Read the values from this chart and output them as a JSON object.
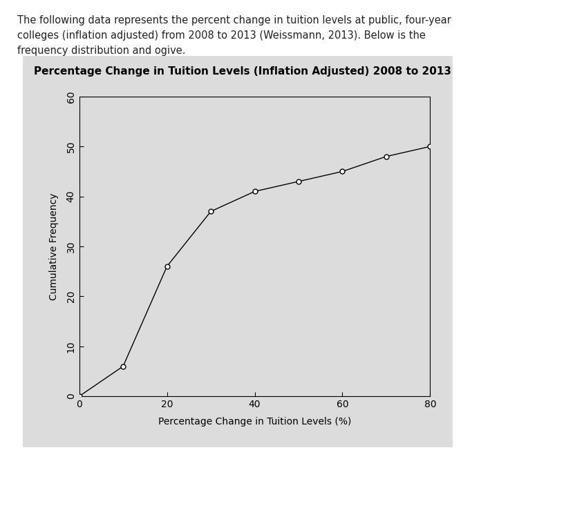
{
  "x_values": [
    0,
    10,
    20,
    30,
    40,
    50,
    60,
    70,
    80
  ],
  "y_values": [
    0,
    6,
    26,
    37,
    41,
    43,
    45,
    48,
    50
  ],
  "title": "Percentage Change in Tuition Levels (Inflation Adjusted) 2008 to 2013",
  "xlabel": "Percentage Change in Tuition Levels (%)",
  "ylabel": "Cumulative Frequency",
  "xlim": [
    0,
    80
  ],
  "ylim": [
    0,
    60
  ],
  "xticks": [
    0,
    20,
    40,
    60,
    80
  ],
  "yticks": [
    0,
    10,
    20,
    30,
    40,
    50,
    60
  ],
  "line_color": "#000000",
  "marker_color": "#000000",
  "plot_bg_color": "#dcdcdc",
  "fig_bg_color": "#ffffff",
  "panel_bg_color": "#dcdcdc",
  "title_fontsize": 11,
  "label_fontsize": 10,
  "tick_fontsize": 10,
  "header_text_line1": "The following data represents the percent change in tuition levels at public, four-year",
  "header_text_line2": "colleges (inflation adjusted) from 2008 to 2013 (Weissmann, 2013). Below is the",
  "header_text_line3": "frequency distribution and ogive.",
  "header_fontsize": 10.5
}
